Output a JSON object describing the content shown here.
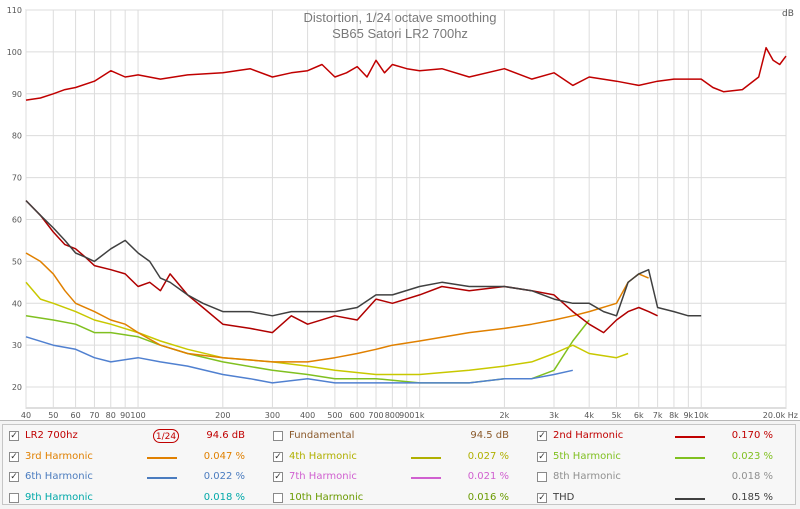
{
  "chart_data": {
    "type": "line",
    "title": "Distortion, 1/24 octave smoothing",
    "subtitle": "SB65 Satori LR2 700hz",
    "ylabel": "dB",
    "xlabel_unit": "Hz",
    "x_scale": "log",
    "xlim": [
      40,
      20000
    ],
    "ylim": [
      15,
      110
    ],
    "y_ticks": [
      20,
      30,
      40,
      50,
      60,
      70,
      80,
      90,
      100,
      110
    ],
    "y_tick_labels": [
      "20",
      "30",
      "40",
      "50",
      "60",
      "70",
      "80",
      "90",
      "100",
      "110"
    ],
    "x_ticks": [
      40,
      50,
      60,
      70,
      80,
      90,
      100,
      200,
      300,
      400,
      500,
      600,
      700,
      800,
      900,
      1000,
      2000,
      3000,
      4000,
      5000,
      6000,
      7000,
      8000,
      9000,
      10000,
      20000
    ],
    "x_tick_labels": [
      "40",
      "50",
      "60",
      "70",
      "80",
      "90",
      "100",
      "200",
      "300",
      "400",
      "500",
      "600",
      "700",
      "800",
      "900",
      "1k",
      "2k",
      "3k",
      "4k",
      "5k",
      "6k",
      "7k",
      "8k",
      "9k",
      "10k",
      "20.0k Hz"
    ],
    "grid": true,
    "series": [
      {
        "name": "LR2 700hz",
        "color": "#c00000",
        "x": [
          40,
          45,
          50,
          55,
          60,
          70,
          80,
          90,
          100,
          120,
          150,
          200,
          250,
          300,
          350,
          400,
          450,
          500,
          550,
          600,
          650,
          700,
          750,
          800,
          900,
          1000,
          1200,
          1500,
          2000,
          2500,
          3000,
          3500,
          4000,
          5000,
          6000,
          7000,
          8000,
          10000,
          11000,
          12000,
          14000,
          16000,
          17000,
          18000,
          19000,
          20000
        ],
        "y": [
          88.5,
          89,
          90,
          91,
          91.5,
          93,
          95.5,
          94,
          94.5,
          93.5,
          94.5,
          95,
          96,
          94,
          95,
          95.5,
          97,
          94,
          95,
          96.5,
          94,
          98,
          95,
          97,
          96,
          95.5,
          96,
          94,
          96,
          93.5,
          95,
          92,
          94,
          93,
          92,
          93,
          93.5,
          93.5,
          91.5,
          90.5,
          91,
          94,
          101,
          98,
          97,
          99
        ]
      },
      {
        "name": "Fundamental",
        "color": "#8b7d7b",
        "x": [
          40,
          20000
        ],
        "y": [
          94.5,
          94.5
        ],
        "hidden": true
      },
      {
        "name": "2nd Harmonic",
        "color": "#b00000",
        "x": [
          40,
          45,
          50,
          55,
          60,
          65,
          70,
          80,
          90,
          100,
          110,
          120,
          130,
          150,
          170,
          200,
          250,
          300,
          350,
          400,
          500,
          600,
          700,
          800,
          1000,
          1200,
          1500,
          2000,
          2500,
          3000,
          3500,
          4000,
          4500,
          5000,
          5500,
          6000,
          6500,
          7000
        ],
        "y": [
          64.5,
          61,
          57,
          54,
          53,
          51,
          49,
          48,
          47,
          44,
          45,
          43,
          47,
          42,
          39,
          35,
          34,
          33,
          37,
          35,
          37,
          36,
          41,
          40,
          42,
          44,
          43,
          44,
          43,
          42,
          38,
          35,
          33,
          36,
          38,
          39,
          38,
          37
        ]
      },
      {
        "name": "3rd Harmonic",
        "color": "#e08000",
        "x": [
          40,
          45,
          50,
          55,
          60,
          70,
          80,
          90,
          100,
          120,
          150,
          200,
          300,
          400,
          500,
          600,
          700,
          800,
          1000,
          1500,
          2000,
          2500,
          3000,
          3500,
          4000,
          5000,
          5500,
          6000,
          6500
        ],
        "y": [
          52,
          50,
          47,
          43,
          40,
          38,
          36,
          35,
          33,
          30,
          28,
          27,
          26,
          26,
          27,
          28,
          29,
          30,
          31,
          33,
          34,
          35,
          36,
          37,
          38,
          40,
          45,
          47,
          46
        ]
      },
      {
        "name": "4th Harmonic",
        "color": "#c8c800",
        "x": [
          40,
          45,
          50,
          60,
          70,
          80,
          100,
          120,
          150,
          200,
          300,
          400,
          500,
          700,
          1000,
          1500,
          2000,
          2500,
          3000,
          3500,
          4000,
          5000,
          5500
        ],
        "y": [
          45,
          41,
          40,
          38,
          36,
          35,
          33,
          31,
          29,
          27,
          26,
          25,
          24,
          23,
          23,
          24,
          25,
          26,
          28,
          30,
          28,
          27,
          28
        ]
      },
      {
        "name": "5th Harmonic",
        "color": "#80c020",
        "x": [
          40,
          50,
          60,
          70,
          80,
          100,
          120,
          150,
          200,
          300,
          400,
          500,
          700,
          1000,
          1500,
          2000,
          2500,
          3000,
          3500,
          4000
        ],
        "y": [
          37,
          36,
          35,
          33,
          33,
          32,
          30,
          28,
          26,
          24,
          23,
          22,
          22,
          21,
          21,
          22,
          22,
          24,
          31,
          36
        ]
      },
      {
        "name": "6th Harmonic",
        "color": "#5080d0",
        "x": [
          40,
          50,
          60,
          70,
          80,
          100,
          120,
          150,
          200,
          250,
          300,
          400,
          500,
          700,
          1000,
          1500,
          2000,
          2500,
          3000,
          3500
        ],
        "y": [
          32,
          30,
          29,
          27,
          26,
          27,
          26,
          25,
          23,
          22,
          21,
          22,
          21,
          21,
          21,
          21,
          22,
          22,
          23,
          24
        ]
      },
      {
        "name": "7th Harmonic",
        "color": "#d060d0",
        "x": [
          40,
          50,
          60,
          70,
          80,
          100,
          120,
          150,
          200,
          250,
          300,
          400,
          500,
          700,
          1000,
          1500,
          2000,
          2500
        ],
        "y": [
          31,
          29,
          28,
          26,
          25,
          26,
          25,
          24,
          23,
          22,
          21,
          21,
          21,
          21,
          20,
          21,
          21,
          22
        ]
      },
      {
        "name": "8th Harmonic",
        "color": "#909090",
        "x": [
          40,
          20000
        ],
        "y": [
          20,
          20
        ],
        "hidden": true
      },
      {
        "name": "9th Harmonic",
        "color": "#00b0b0",
        "x": [
          40,
          20000
        ],
        "y": [
          20,
          20
        ],
        "hidden": true
      },
      {
        "name": "10th Harmonic",
        "color": "#70a000",
        "x": [
          40,
          20000
        ],
        "y": [
          20,
          20
        ],
        "hidden": true
      },
      {
        "name": "THD",
        "color": "#404040",
        "x": [
          40,
          45,
          50,
          55,
          60,
          65,
          70,
          80,
          90,
          100,
          110,
          120,
          130,
          150,
          170,
          200,
          250,
          300,
          350,
          400,
          500,
          600,
          700,
          800,
          1000,
          1200,
          1500,
          2000,
          2500,
          3000,
          3500,
          4000,
          4500,
          5000,
          5500,
          6000,
          6500,
          7000,
          8000,
          9000,
          10000
        ],
        "y": [
          64.5,
          61,
          58,
          55,
          52,
          51,
          50,
          53,
          55,
          52,
          50,
          46,
          45,
          42,
          40,
          38,
          38,
          37,
          38,
          38,
          38,
          39,
          42,
          42,
          44,
          45,
          44,
          44,
          43,
          41,
          40,
          40,
          38,
          37,
          45,
          47,
          48,
          39,
          38,
          37,
          37
        ]
      }
    ]
  },
  "legend": {
    "smoothing": "1/24",
    "rows": [
      [
        {
          "label": "LR2 700hz",
          "checked": true,
          "color": "#c00000",
          "value": "94.6 dB",
          "swatch": false,
          "smooth": true
        },
        {
          "label": "Fundamental",
          "checked": false,
          "color": "#8b5a2b",
          "value": "94.5 dB",
          "swatch": false
        },
        {
          "label": "2nd Harmonic",
          "checked": true,
          "color": "#c00000",
          "value": "0.170 %",
          "swatch": true
        }
      ],
      [
        {
          "label": "3rd Harmonic",
          "checked": true,
          "color": "#e08000",
          "value": "0.047 %",
          "swatch": true
        },
        {
          "label": "4th Harmonic",
          "checked": true,
          "color": "#b0b000",
          "value": "0.027 %",
          "swatch": true
        },
        {
          "label": "5th Harmonic",
          "checked": true,
          "color": "#80c020",
          "value": "0.023 %",
          "swatch": true
        }
      ],
      [
        {
          "label": "6th Harmonic",
          "checked": true,
          "color": "#4a7cc0",
          "value": "0.022 %",
          "swatch": true
        },
        {
          "label": "7th Harmonic",
          "checked": true,
          "color": "#d060d0",
          "value": "0.021 %",
          "swatch": true
        },
        {
          "label": "8th Harmonic",
          "checked": false,
          "color": "#909090",
          "value": "0.018 %",
          "swatch": false
        }
      ],
      [
        {
          "label": "9th Harmonic",
          "checked": false,
          "color": "#00a8a8",
          "value": "0.018 %",
          "swatch": false
        },
        {
          "label": "10th Harmonic",
          "checked": false,
          "color": "#6a9a00",
          "value": "0.016 %",
          "swatch": false
        },
        {
          "label": "THD",
          "checked": true,
          "color": "#404040",
          "value": "0.185 %",
          "swatch": true
        }
      ]
    ]
  }
}
